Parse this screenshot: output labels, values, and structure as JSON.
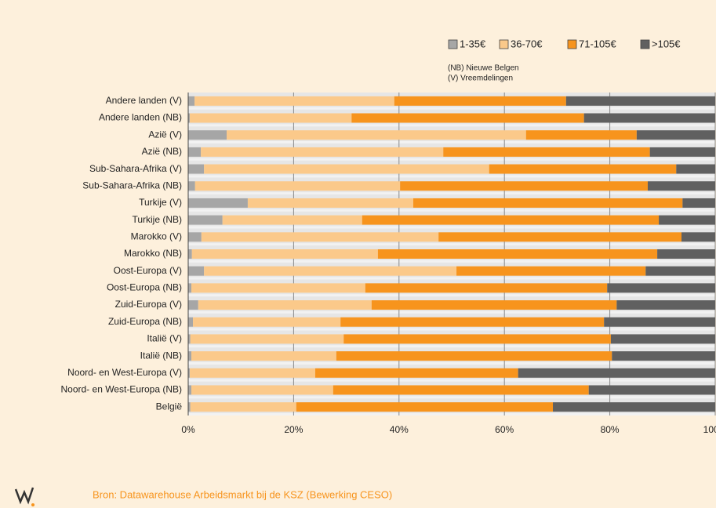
{
  "chart_data": {
    "type": "stacked_barh",
    "categories": [
      "Andere landen (V)",
      "Andere landen (NB)",
      "Azië (V)",
      "Azië (NB)",
      "Sub-Sahara-Afrika (V)",
      "Sub-Sahara-Afrika (NB)",
      "Turkije (V)",
      "Turkije (NB)",
      "Marokko (V)",
      "Marokko (NB)",
      "Oost-Europa (V)",
      "Oost-Europa (NB)",
      "Zuid-Europa (V)",
      "Zuid-Europa (NB)",
      "Italië (V)",
      "Italië (NB)",
      "Noord- en West-Europa (V)",
      "Noord- en West-Europa (NB)",
      "België"
    ],
    "series": [
      {
        "name": "1-35€",
        "color": "#a6a6a6",
        "values": [
          1.2,
          0.3,
          7.3,
          2.4,
          3.0,
          1.3,
          11.3,
          6.5,
          2.5,
          0.7,
          3.0,
          0.6,
          1.9,
          0.9,
          0.4,
          0.6,
          0.3,
          0.6,
          0.4
        ]
      },
      {
        "name": "36-70€",
        "color": "#fbc98a",
        "values": [
          37.9,
          30.7,
          56.8,
          46.0,
          54.1,
          38.9,
          31.4,
          26.5,
          45.0,
          35.3,
          47.9,
          33.0,
          32.9,
          28.0,
          29.1,
          27.5,
          23.8,
          26.9,
          20.1
        ]
      },
      {
        "name": "71-105€",
        "color": "#f7941d",
        "values": [
          32.6,
          44.1,
          21.0,
          39.2,
          35.5,
          47.0,
          51.1,
          56.3,
          46.1,
          53.0,
          35.9,
          45.9,
          46.5,
          50.0,
          50.7,
          52.3,
          38.5,
          48.5,
          48.7
        ]
      },
      {
        "name": ">105€",
        "color": "#606060",
        "values": [
          28.3,
          24.9,
          14.9,
          12.4,
          7.4,
          12.8,
          6.2,
          10.7,
          6.4,
          11.0,
          13.2,
          20.5,
          18.7,
          21.1,
          19.8,
          19.6,
          37.4,
          24.0,
          30.8
        ]
      }
    ],
    "xlim": [
      0,
      100
    ],
    "xticks": [
      {
        "value": 0,
        "label": "0%"
      },
      {
        "value": 20,
        "label": "20%"
      },
      {
        "value": 40,
        "label": "40%"
      },
      {
        "value": 60,
        "label": "60%"
      },
      {
        "value": 80,
        "label": "80%"
      },
      {
        "value": 100,
        "label": "100%"
      }
    ],
    "grid": true,
    "legend": "top-right",
    "notes": [
      "(NB) Nieuwe Belgen",
      "(V) Vreemdelingen"
    ],
    "source": "Bron: Datawarehouse Arbeidsmarkt bij de KSZ (Bewerking CESO)"
  }
}
